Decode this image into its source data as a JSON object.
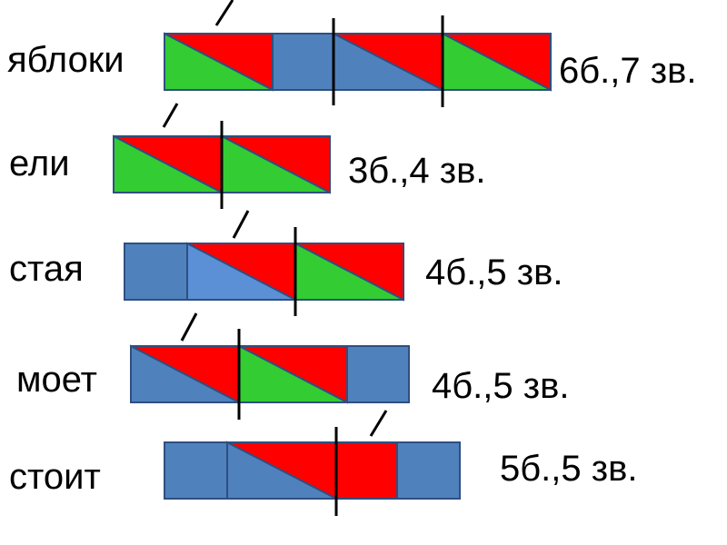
{
  "rows": [
    {
      "word": "яблоки",
      "label": "6б.,7 зв."
    },
    {
      "word": "ели",
      "label": "3б.,4 зв."
    },
    {
      "word": "стая",
      "label": "4б.,5 зв."
    },
    {
      "word": "моет",
      "label": "4б.,5 зв."
    },
    {
      "word": "стоит",
      "label": "5б.,5 зв."
    }
  ]
}
